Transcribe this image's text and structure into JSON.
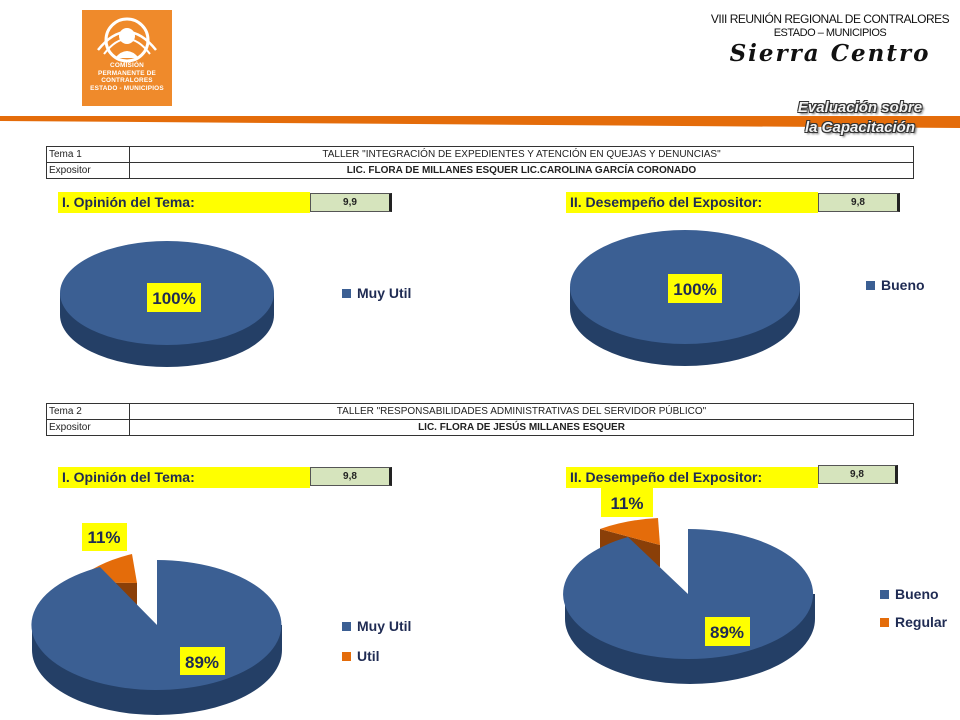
{
  "header": {
    "logo_text": [
      "COMISIÓN",
      "PERMANENTE DE",
      "CONTRALORES",
      "ESTADO - MUNICIPIOS"
    ],
    "event_line1": "VIII REUNIÓN REGIONAL DE CONTRALORES",
    "event_line2": "ESTADO – MUNICIPIOS",
    "region_name": "Sierra Centro",
    "section_title_line1": "Evaluación sobre",
    "section_title_line2": "la Capacitación"
  },
  "colors": {
    "orange": "#e46c0a",
    "blue": "#3b5f93",
    "yellow": "#ffff00",
    "score_bg": "#d6e4bd"
  },
  "topics": [
    {
      "tema_label": "Tema 1",
      "tema_value": "TALLER \"INTEGRACIÓN DE EXPEDIENTES Y ATENCIÓN EN QUEJAS Y DENUNCIAS\"",
      "expositor_label": "Expositor",
      "expositor_value": "LIC. FLORA DE MILLANES ESQUER   LIC.CAROLINA GARCÍA CORONADO",
      "opinion_label": "I. Opinión del Tema:",
      "opinion_score": "9,9",
      "desempeno_label": "II. Desempeño del Expositor:",
      "desempeno_score": "9,8"
    },
    {
      "tema_label": "Tema 2",
      "tema_value": "TALLER \"RESPONSABILIDADES ADMINISTRATIVAS DEL SERVIDOR PÚBLICO\"",
      "expositor_label": "Expositor",
      "expositor_value": "LIC. FLORA DE JESÚS MILLANES ESQUER",
      "opinion_label": "I. Opinión del Tema:",
      "opinion_score": "9,8",
      "desempeno_label": "II. Desempeño del Expositor:",
      "desempeno_score": "9,8"
    }
  ],
  "chart_data": [
    {
      "type": "pie",
      "categories": [
        "Muy Util"
      ],
      "values": [
        100
      ],
      "data_labels": [
        "100%"
      ],
      "legend_position": "right"
    },
    {
      "type": "pie",
      "categories": [
        "Bueno"
      ],
      "values": [
        100
      ],
      "data_labels": [
        "100%"
      ],
      "legend_position": "right"
    },
    {
      "type": "pie",
      "categories": [
        "Muy Util",
        "Util"
      ],
      "values": [
        89,
        11
      ],
      "data_labels": [
        "89%",
        "11%"
      ],
      "legend_position": "right"
    },
    {
      "type": "pie",
      "categories": [
        "Bueno",
        "Regular"
      ],
      "values": [
        89,
        11
      ],
      "data_labels": [
        "89%",
        "11%"
      ],
      "legend_position": "right"
    }
  ]
}
